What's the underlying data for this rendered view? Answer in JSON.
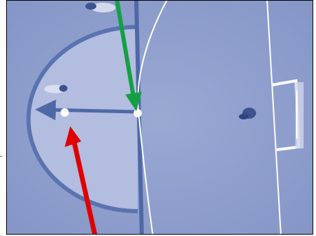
{
  "scene": {
    "description_type": "overhead futsal court diagram photo",
    "colors": {
      "court": "#8c9ccc",
      "court_light": "#98a7d2",
      "penalty_area": "#b4bde0",
      "center_line": "#4f68a6",
      "arc_line": "#5a73b0",
      "white_line": "#ffffff",
      "ball": "#ffffff",
      "green_arrow": "#12a043",
      "red_arrow": "#e00000",
      "frame": "#000000"
    },
    "icons": [
      "ball",
      "player",
      "goal",
      "green-arrow",
      "red-arrow",
      "direction-arrow"
    ]
  }
}
